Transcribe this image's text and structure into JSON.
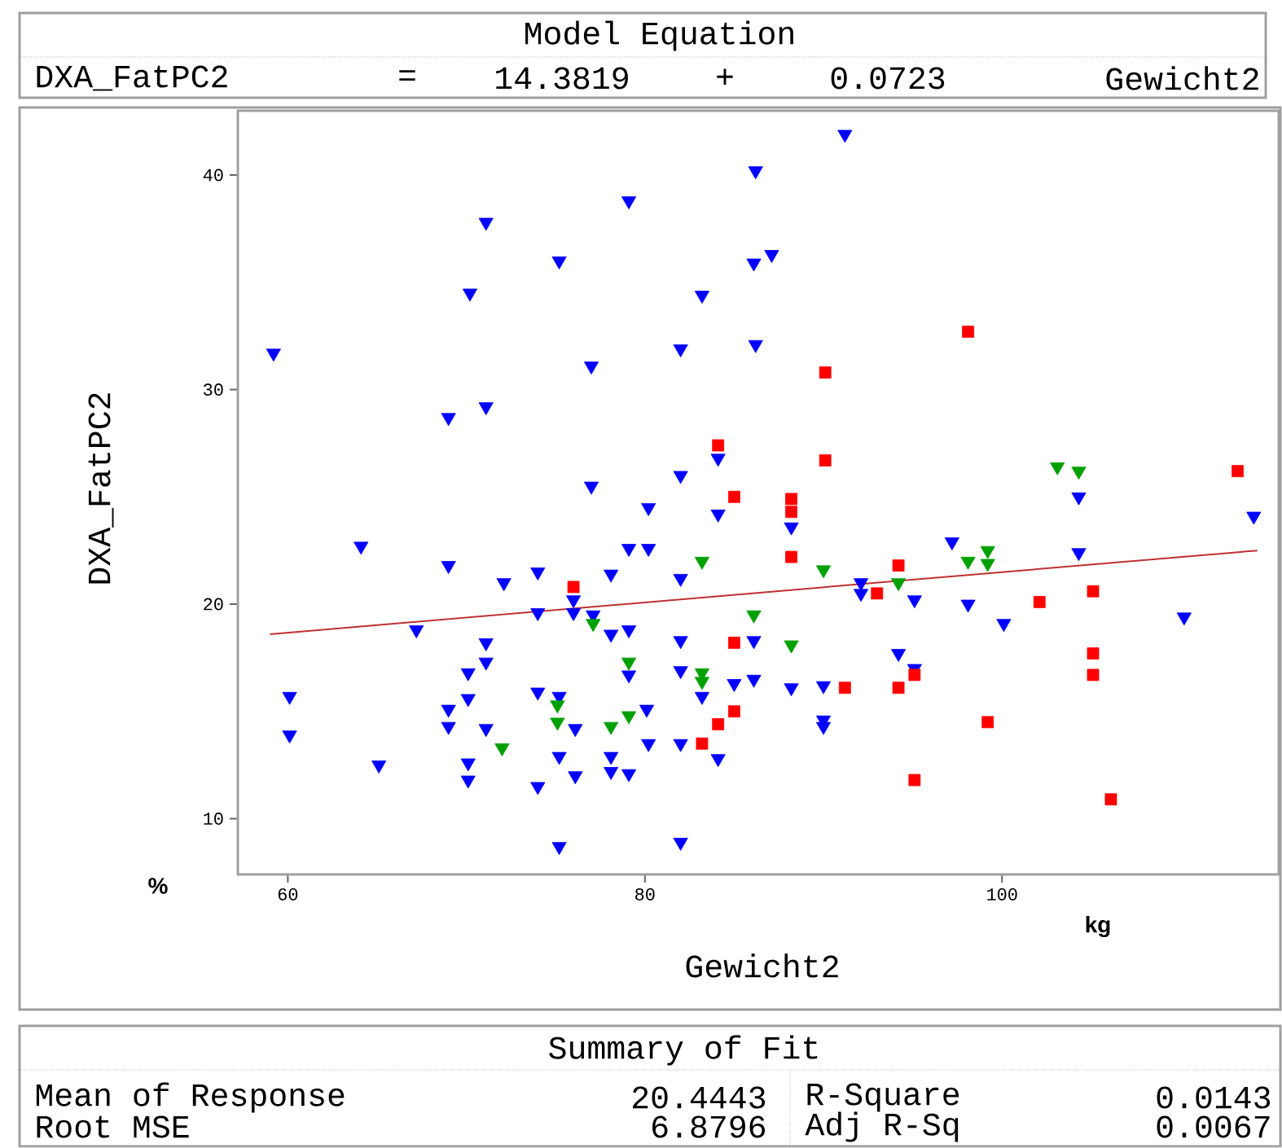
{
  "chart_data": {
    "type": "scatter",
    "title": "Model Equation",
    "xlabel": "Gewicht2",
    "ylabel": "DXA_FatPC2",
    "xlim": [
      57.2,
      115.5
    ],
    "ylim": [
      7.4,
      43.0
    ],
    "xticks": [
      60,
      80,
      100
    ],
    "yticks": [
      10,
      20,
      30,
      40
    ],
    "annotations": [
      "DXA_FatPC2",
      "=",
      "14.3819",
      "+",
      "0.0723",
      "Gewicht2",
      "%",
      "kg",
      "Summary of Fit",
      "Mean of Response",
      "20.4443",
      "R-Square",
      "0.0143",
      "Root MSE",
      "6.8796",
      "Adj R-Sq",
      "0.0067"
    ],
    "series": [
      {
        "type": "scatter",
        "color": "#0000ff",
        "marker": "triangle",
        "x": [
          59.2,
          60.1,
          60.1,
          64.1,
          65.1,
          67.2,
          69.0,
          69.0,
          69.0,
          69.0,
          70.2,
          70.1,
          70.1,
          70.1,
          70.1,
          71.1,
          71.1,
          71.1,
          71.1,
          71.1,
          72.1,
          74.0,
          74.0,
          74.0,
          74.0,
          75.2,
          75.2,
          75.2,
          75.2,
          76.0,
          76.0,
          76.1,
          76.1,
          77.0,
          77.0,
          77.1,
          78.1,
          78.1,
          78.1,
          78.1,
          79.1,
          79.1,
          79.1,
          79.1,
          79.1,
          80.2,
          80.2,
          80.1,
          80.2,
          82.0,
          82.0,
          82.0,
          82.0,
          82.0,
          82.0,
          82.0,
          83.2,
          83.2,
          84.1,
          84.1,
          84.1,
          85.0,
          86.2,
          86.1,
          87.1,
          86.2,
          86.1,
          86.1,
          88.2,
          88.2,
          90.0,
          90.0,
          90.0,
          91.2,
          92.1,
          92.1,
          94.2,
          95.1,
          95.1,
          97.2,
          98.1,
          100.1,
          104.3,
          104.3,
          110.2,
          114.1
        ],
        "values": [
          31.7,
          15.7,
          13.9,
          22.7,
          12.5,
          18.8,
          28.7,
          21.8,
          15.1,
          14.3,
          34.5,
          16.8,
          15.6,
          12.6,
          11.8,
          37.8,
          29.2,
          18.2,
          17.3,
          14.2,
          21.0,
          21.5,
          15.9,
          11.5,
          19.6,
          36.0,
          15.7,
          12.9,
          8.7,
          19.6,
          20.2,
          14.2,
          12.0,
          31.1,
          25.5,
          19.5,
          21.4,
          18.6,
          12.9,
          12.2,
          38.8,
          22.6,
          18.8,
          16.7,
          12.1,
          24.5,
          22.6,
          15.1,
          13.5,
          31.9,
          26.0,
          21.2,
          18.3,
          16.9,
          13.5,
          8.9,
          34.4,
          15.7,
          26.8,
          24.2,
          12.8,
          16.3,
          40.2,
          35.9,
          36.3,
          32.1,
          18.3,
          16.5,
          23.6,
          16.1,
          16.2,
          14.6,
          14.3,
          41.9,
          21.0,
          20.5,
          17.7,
          17.0,
          20.2,
          22.9,
          20.0,
          19.1,
          25.0,
          22.4,
          19.4,
          24.1
        ]
      },
      {
        "type": "scatter",
        "color": "#00a000",
        "marker": "triangle",
        "x": [
          72.0,
          75.1,
          75.1,
          77.1,
          78.1,
          79.1,
          79.1,
          83.2,
          83.2,
          83.2,
          86.1,
          88.2,
          90.0,
          94.2,
          98.1,
          99.2,
          99.2,
          103.1,
          104.3
        ],
        "values": [
          13.3,
          15.3,
          14.5,
          19.1,
          14.3,
          17.3,
          14.8,
          22.0,
          16.8,
          16.4,
          19.5,
          18.1,
          21.6,
          21.0,
          22.0,
          22.5,
          21.9,
          26.4,
          26.2
        ]
      },
      {
        "type": "scatter",
        "color": "#ff0000",
        "marker": "square",
        "x": [
          76.0,
          83.2,
          84.1,
          84.1,
          85.0,
          85.0,
          85.0,
          88.2,
          88.2,
          88.2,
          90.1,
          90.1,
          91.2,
          93.0,
          94.2,
          94.2,
          95.1,
          95.1,
          98.1,
          99.2,
          102.1,
          105.1,
          105.1,
          105.1,
          106.1,
          113.2
        ],
        "values": [
          20.8,
          13.5,
          27.4,
          14.4,
          25.0,
          18.2,
          15.0,
          24.9,
          24.3,
          22.2,
          30.8,
          26.7,
          16.1,
          20.5,
          21.8,
          16.1,
          16.7,
          11.8,
          32.7,
          14.5,
          20.1,
          20.6,
          17.7,
          16.7,
          10.9,
          26.2
        ]
      },
      {
        "type": "line",
        "color": "#c03030",
        "marker": "none",
        "line_style": "solid",
        "x": [
          59.0,
          114.3
        ],
        "values": [
          18.6,
          22.5
        ]
      }
    ]
  }
}
